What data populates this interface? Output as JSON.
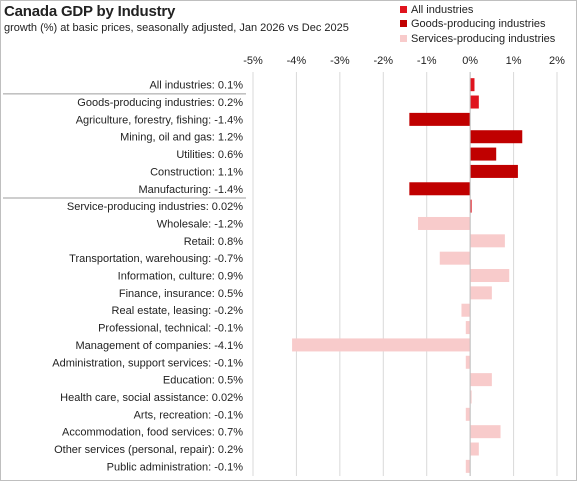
{
  "chart_data": {
    "type": "bar",
    "orientation": "horizontal",
    "title": "Canada GDP by Industry",
    "subtitle": "growth (%) at basic prices, seasonally  adjusted, Jan 2026 vs Dec 2025",
    "xlim": [
      -5,
      2
    ],
    "x_ticks": [
      -5,
      -4,
      -3,
      -2,
      -1,
      0,
      1,
      2
    ],
    "x_tick_labels": [
      "-5%",
      "-4%",
      "-3%",
      "-2%",
      "-1%",
      "0%",
      "1%",
      "2%"
    ],
    "grid": "vertical",
    "legend_position": "top-right",
    "series": [
      {
        "name": "All industries",
        "color": "#e0141e"
      },
      {
        "name": "Goods-producing industries",
        "color": "#c00000"
      },
      {
        "name": "Services-producing industries",
        "color": "#f8cbcb"
      }
    ],
    "categories": [
      "All industries: 0.1%",
      "Goods-producing industries: 0.2%",
      "Agriculture, forestry, fishing: -1.4%",
      "Mining, oil and gas: 1.2%",
      "Utilities: 0.6%",
      "Construction: 1.1%",
      "Manufacturing: -1.4%",
      "Service-producing industries: 0.02%",
      "Wholesale: -1.2%",
      "Retail: 0.8%",
      "Transportation, warehousing: -0.7%",
      "Information, culture: 0.9%",
      "Finance, insurance: 0.5%",
      "Real estate, leasing: -0.2%",
      "Professional, technical: -0.1%",
      "Management of companies: -4.1%",
      "Administration, support services: -0.1%",
      "Education: 0.5%",
      "Health care, social assistance: 0.02%",
      "Arts, recreation: -0.1%",
      "Accommodation, food services: 0.7%",
      "Other services (personal, repair): 0.2%",
      "Public administration: -0.1%"
    ],
    "values": [
      0.1,
      0.2,
      -1.4,
      1.2,
      0.6,
      1.1,
      -1.4,
      0.02,
      -1.2,
      0.8,
      -0.7,
      0.9,
      0.5,
      -0.2,
      -0.1,
      -4.1,
      -0.1,
      0.5,
      0.02,
      -0.1,
      0.7,
      0.2,
      -0.1
    ],
    "bar_series": [
      0,
      0,
      1,
      1,
      1,
      1,
      1,
      0,
      2,
      2,
      2,
      2,
      2,
      2,
      2,
      2,
      2,
      2,
      2,
      2,
      2,
      2,
      2
    ],
    "group_separators_before": [
      1,
      7
    ]
  }
}
